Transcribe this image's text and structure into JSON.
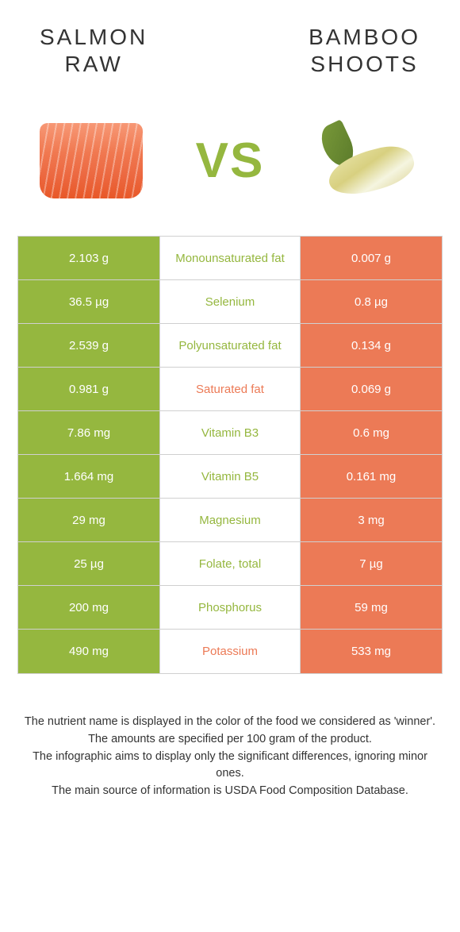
{
  "colors": {
    "green": "#95b73f",
    "orange": "#ec7a56",
    "text_dark": "#333333"
  },
  "header": {
    "left": "SALMON\nRAW",
    "right": "BAMBOO\nSHOOTS"
  },
  "vs": "VS",
  "rows": [
    {
      "left": "2.103 g",
      "mid": "Monounsaturated fat",
      "right": "0.007 g",
      "winner": "green"
    },
    {
      "left": "36.5 µg",
      "mid": "Selenium",
      "right": "0.8 µg",
      "winner": "green"
    },
    {
      "left": "2.539 g",
      "mid": "Polyunsaturated fat",
      "right": "0.134 g",
      "winner": "green"
    },
    {
      "left": "0.981 g",
      "mid": "Saturated fat",
      "right": "0.069 g",
      "winner": "orange"
    },
    {
      "left": "7.86 mg",
      "mid": "Vitamin B3",
      "right": "0.6 mg",
      "winner": "green"
    },
    {
      "left": "1.664 mg",
      "mid": "Vitamin B5",
      "right": "0.161 mg",
      "winner": "green"
    },
    {
      "left": "29 mg",
      "mid": "Magnesium",
      "right": "3 mg",
      "winner": "green"
    },
    {
      "left": "25 µg",
      "mid": "Folate, total",
      "right": "7 µg",
      "winner": "green"
    },
    {
      "left": "200 mg",
      "mid": "Phosphorus",
      "right": "59 mg",
      "winner": "green"
    },
    {
      "left": "490 mg",
      "mid": "Potassium",
      "right": "533 mg",
      "winner": "orange"
    }
  ],
  "footer": {
    "l1": "The nutrient name is displayed in the color of the food we considered as 'winner'.",
    "l2": "The amounts are specified per 100 gram of the product.",
    "l3": "The infographic aims to display only the significant differences, ignoring minor ones.",
    "l4": "The main source of information is USDA Food Composition Database."
  }
}
